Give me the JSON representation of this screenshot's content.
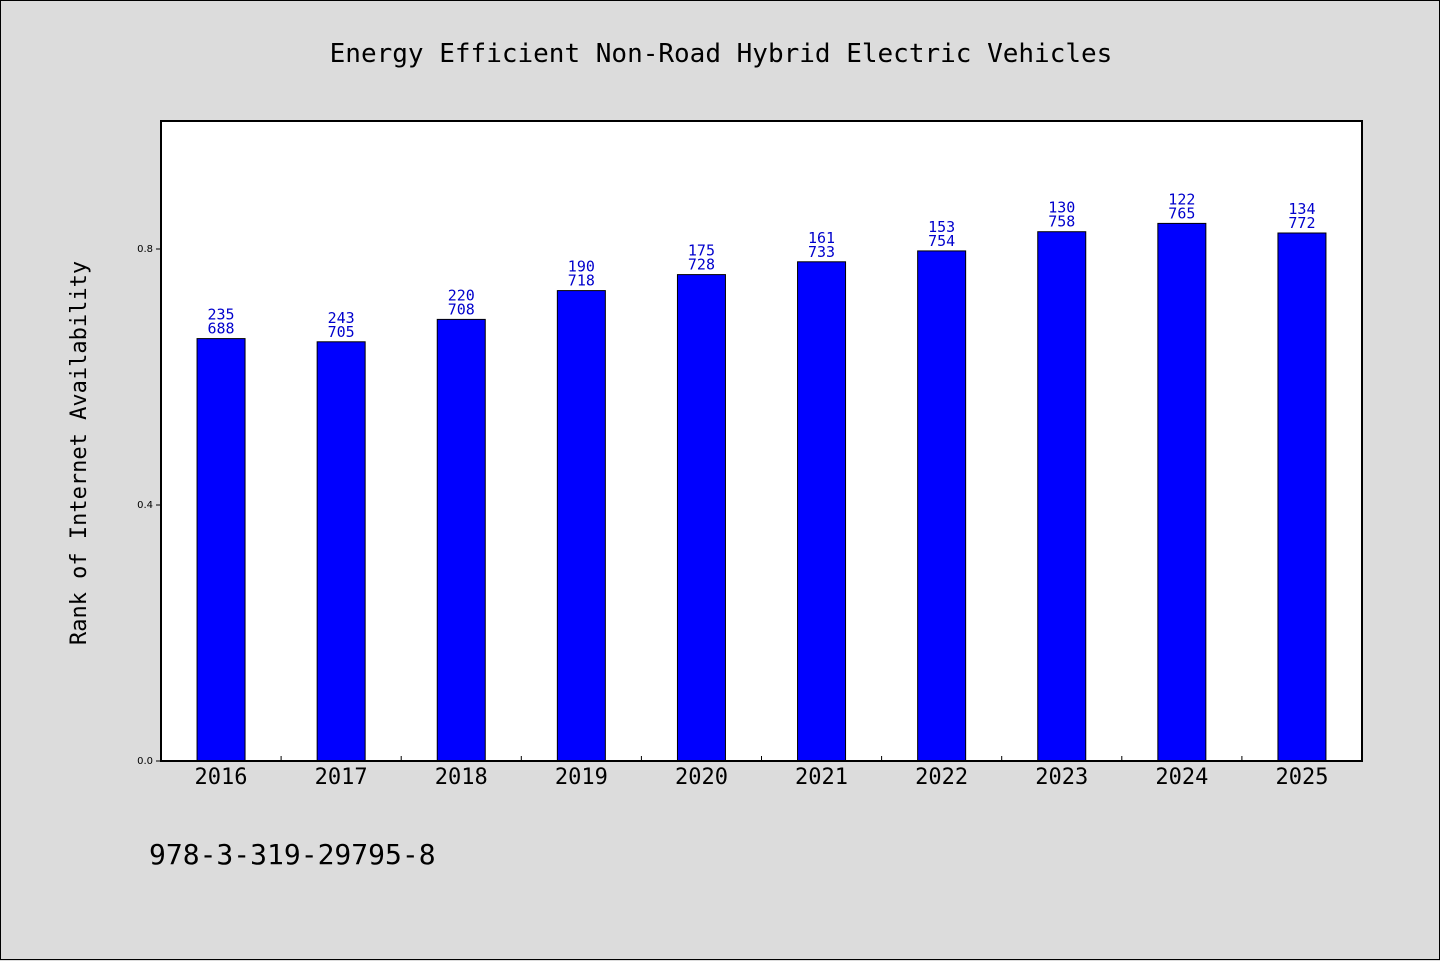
{
  "colors": {
    "background": "#dcdcdc",
    "plot_background": "#ffffff",
    "bar": "#0000ff",
    "label": "#0000cc"
  },
  "footer": "978-3-319-29795-8",
  "chart_data": {
    "type": "bar",
    "title": "Energy Efficient Non-Road Hybrid Electric Vehicles",
    "xlabel": "",
    "ylabel": "Rank of Internet Availability",
    "categories": [
      "2016",
      "2017",
      "2018",
      "2019",
      "2020",
      "2021",
      "2022",
      "2023",
      "2024",
      "2025"
    ],
    "values": [
      0.66,
      0.655,
      0.69,
      0.735,
      0.76,
      0.78,
      0.797,
      0.827,
      0.84,
      0.825
    ],
    "labels_top": [
      "235",
      "243",
      "220",
      "190",
      "175",
      "161",
      "153",
      "130",
      "122",
      "134"
    ],
    "labels_bottom": [
      "688",
      "705",
      "708",
      "718",
      "728",
      "733",
      "754",
      "758",
      "765",
      "772"
    ],
    "ylim": [
      0,
      1.0
    ],
    "yticks": [
      0.0,
      0.4,
      0.8
    ],
    "ytick_labels": [
      "0.0",
      "0.4",
      "0.8"
    ],
    "grid": false,
    "legend": "none"
  }
}
